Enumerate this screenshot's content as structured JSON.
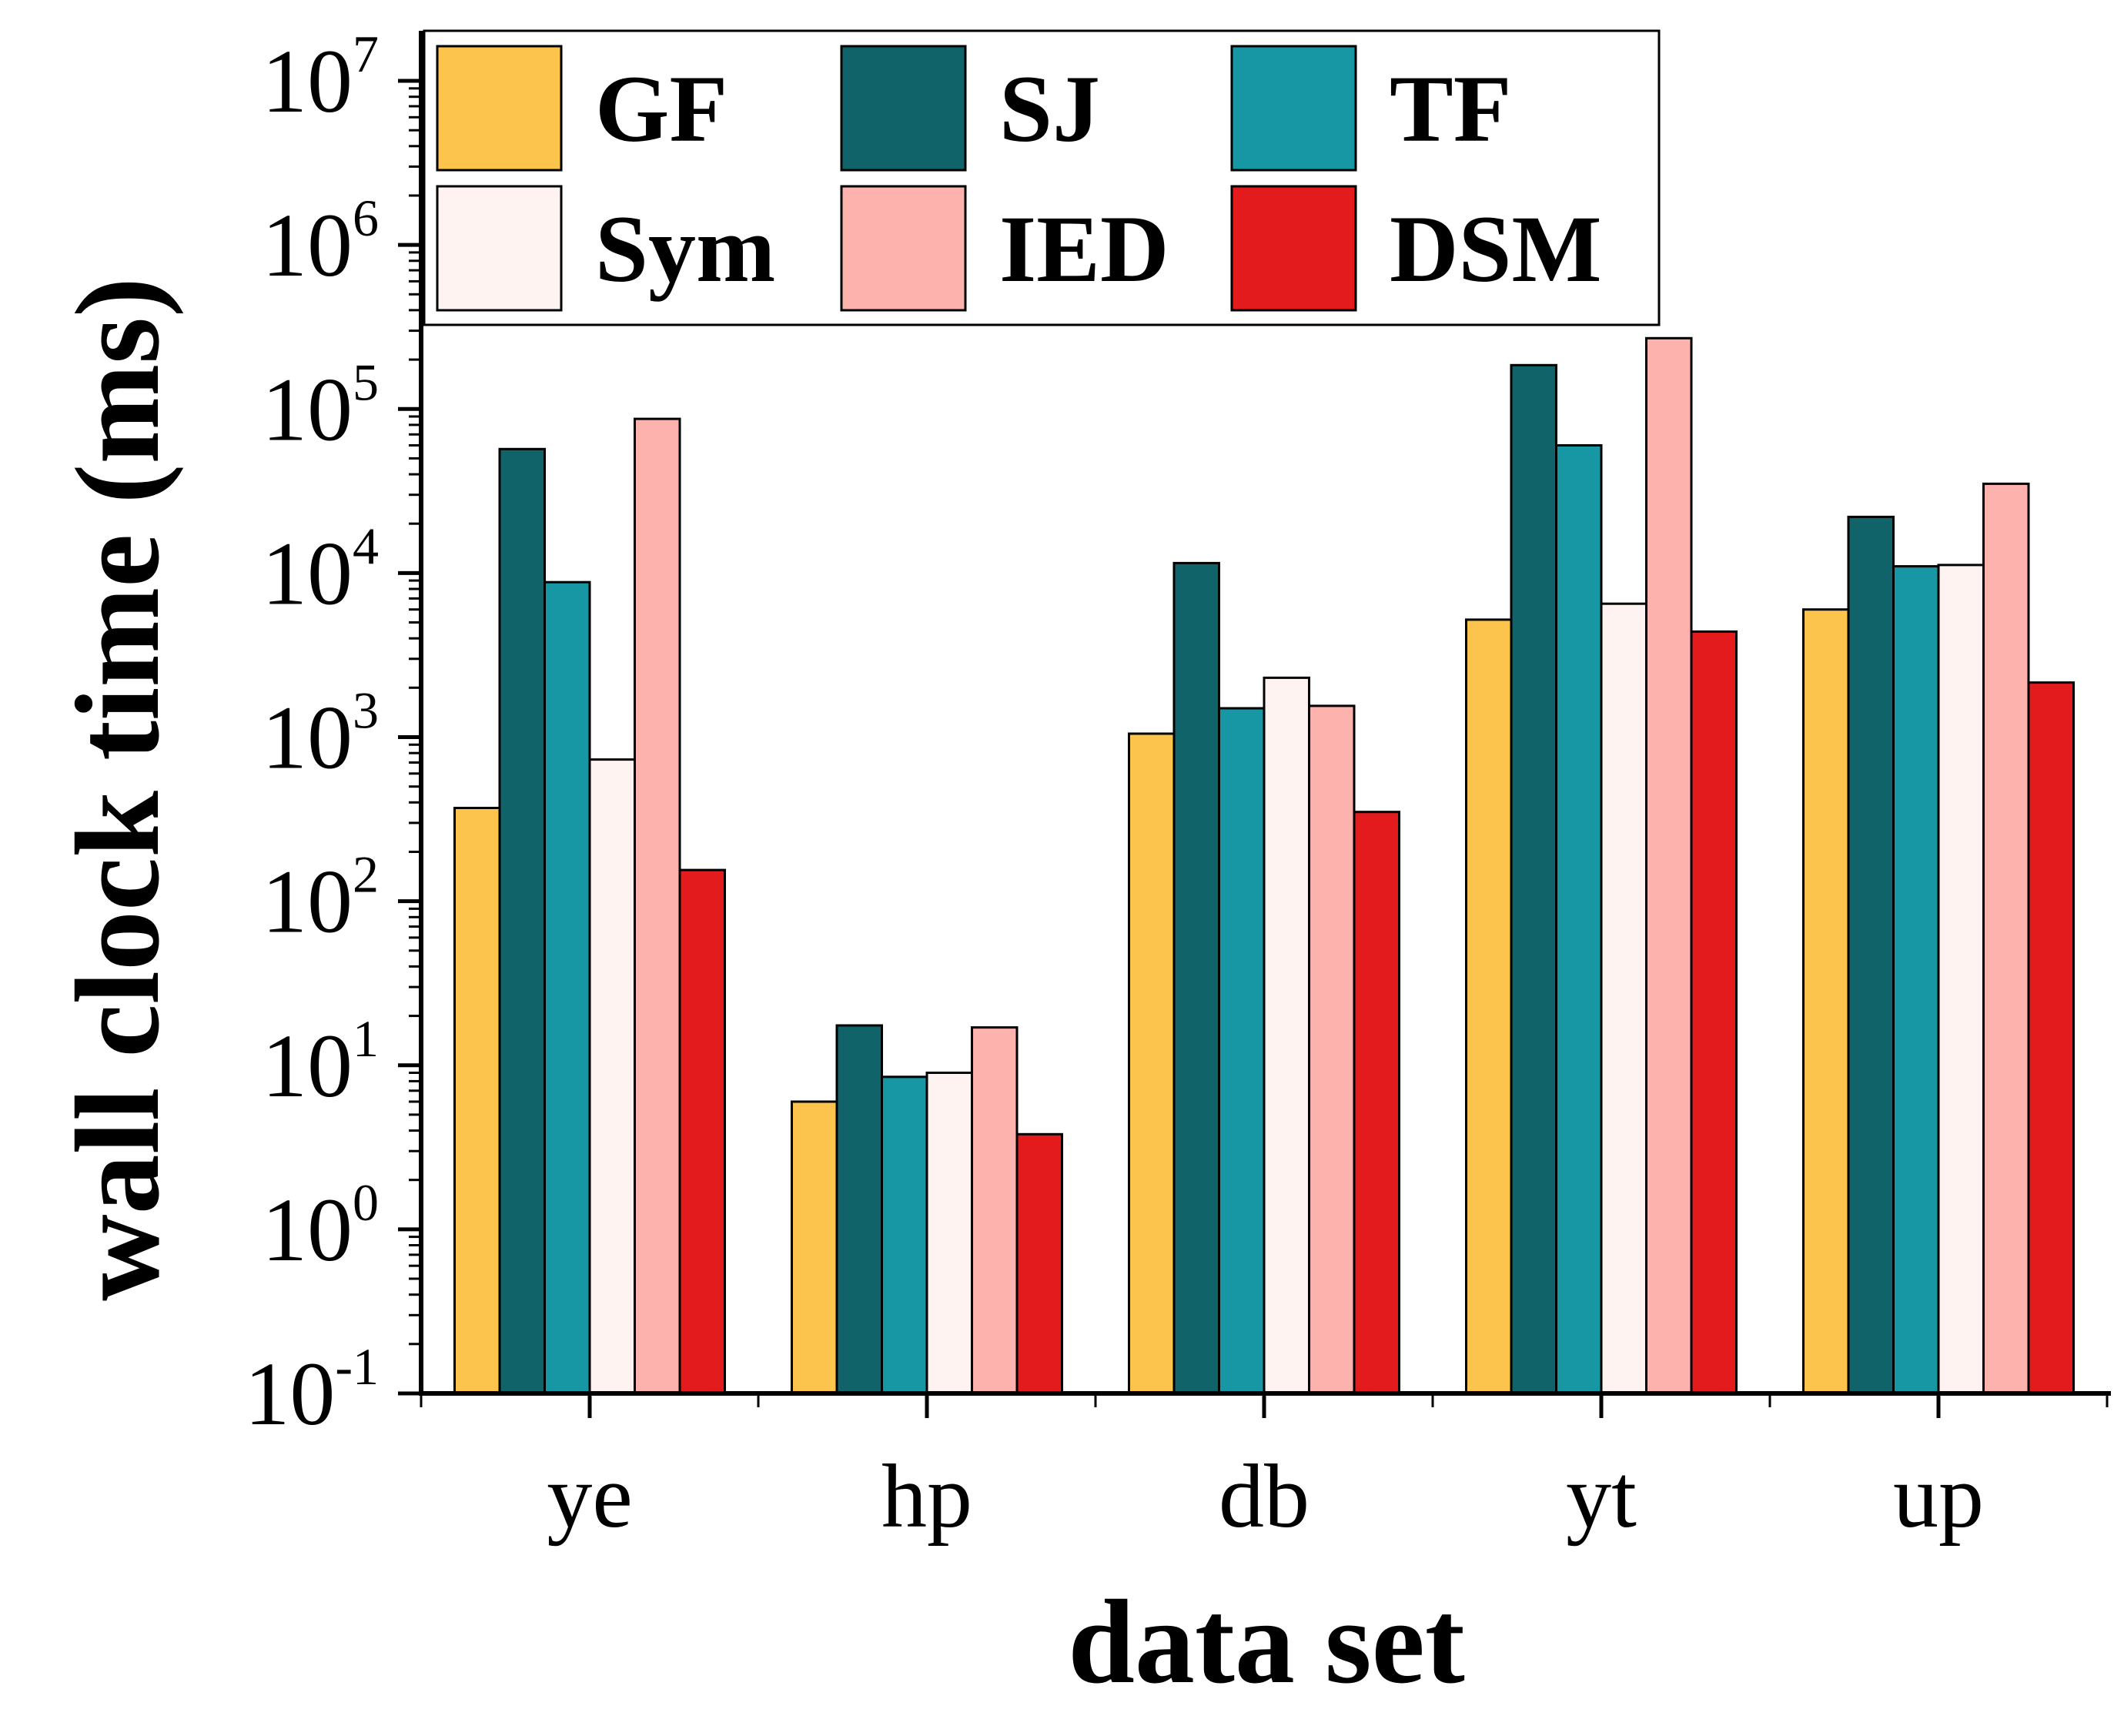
{
  "chart_data": {
    "type": "bar",
    "scale": "log",
    "xlabel": "data set",
    "ylabel": "wall clock time (ms)",
    "categories": [
      "ye",
      "hp",
      "db",
      "yt",
      "up"
    ],
    "ylim": [
      0.1,
      10000000
    ],
    "y_ticks": [
      {
        "base": "10",
        "exp": "-1",
        "value": 0.1
      },
      {
        "base": "10",
        "exp": "0",
        "value": 1
      },
      {
        "base": "10",
        "exp": "1",
        "value": 10
      },
      {
        "base": "10",
        "exp": "2",
        "value": 100
      },
      {
        "base": "10",
        "exp": "3",
        "value": 1000
      },
      {
        "base": "10",
        "exp": "4",
        "value": 10000
      },
      {
        "base": "10",
        "exp": "5",
        "value": 100000
      },
      {
        "base": "10",
        "exp": "6",
        "value": 1000000
      },
      {
        "base": "10",
        "exp": "7",
        "value": 10000000
      }
    ],
    "legend_position": "top",
    "series": [
      {
        "name": "GF",
        "color": "#fcc44c",
        "values": [
          370,
          6,
          1050,
          5200,
          6000
        ]
      },
      {
        "name": "SJ",
        "color": "#11636a",
        "values": [
          57000,
          17.5,
          11500,
          185000,
          22000
        ]
      },
      {
        "name": "TF",
        "color": "#1796a4",
        "values": [
          8800,
          8.5,
          1500,
          60000,
          11000
        ]
      },
      {
        "name": "Sym",
        "color": "#fff3f1",
        "values": [
          730,
          9,
          2300,
          6500,
          11200
        ]
      },
      {
        "name": "IED",
        "color": "#fdb2ad",
        "values": [
          87000,
          17,
          1550,
          270000,
          35000
        ]
      },
      {
        "name": "DSM",
        "color": "#e31b1d",
        "values": [
          155,
          3.8,
          350,
          4400,
          2150
        ]
      }
    ]
  }
}
